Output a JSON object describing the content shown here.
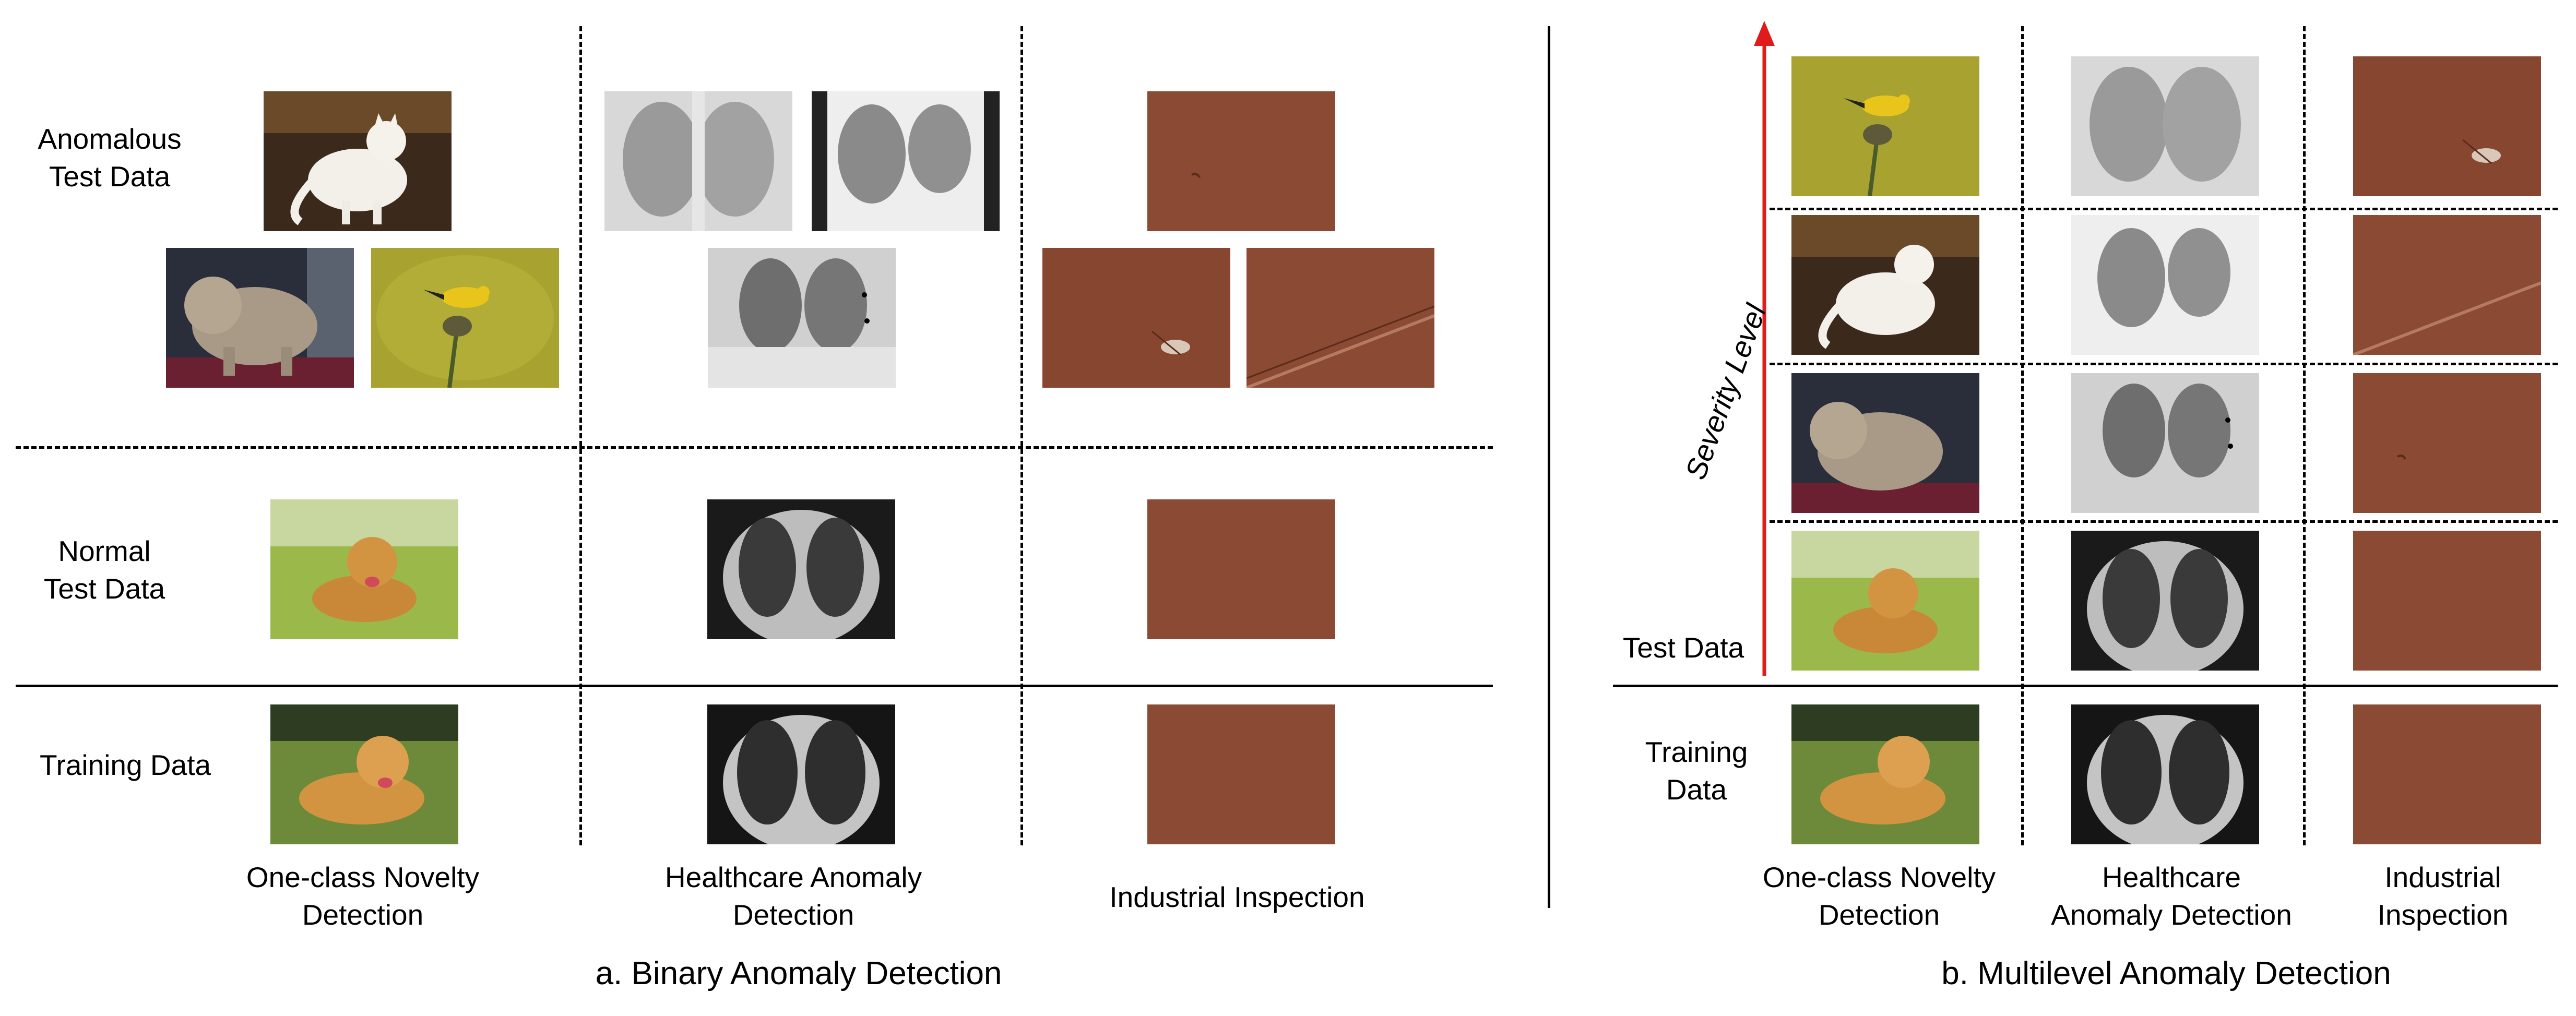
{
  "binary": {
    "caption": "a. Binary Anomaly Detection",
    "rows": {
      "anomalous": [
        "Anomalous",
        "Test Data"
      ],
      "normal": [
        "Normal",
        "Test Data"
      ],
      "training": "Training Data"
    },
    "columns": [
      [
        "One-class Novelty",
        "Detection"
      ],
      [
        "Healthcare Anomaly",
        "Detection"
      ],
      [
        "Industrial Inspection"
      ]
    ]
  },
  "multilevel": {
    "caption": "b. Multilevel Anomaly Detection",
    "axis_label": "Severity Level",
    "test_label": "Test Data",
    "training": [
      "Training",
      "Data"
    ],
    "columns": [
      [
        "One-class Novelty",
        "Detection"
      ],
      [
        "Healthcare",
        "Anomaly Detection"
      ],
      [
        "Industrial",
        "Inspection"
      ]
    ]
  },
  "colors": {
    "arrow": "#e01b1b",
    "leather": "#8a4a33",
    "grass": "#9bb94a",
    "xray_dark": "#1a1a1a"
  },
  "icons": {
    "arrow": "up-arrow-icon"
  }
}
